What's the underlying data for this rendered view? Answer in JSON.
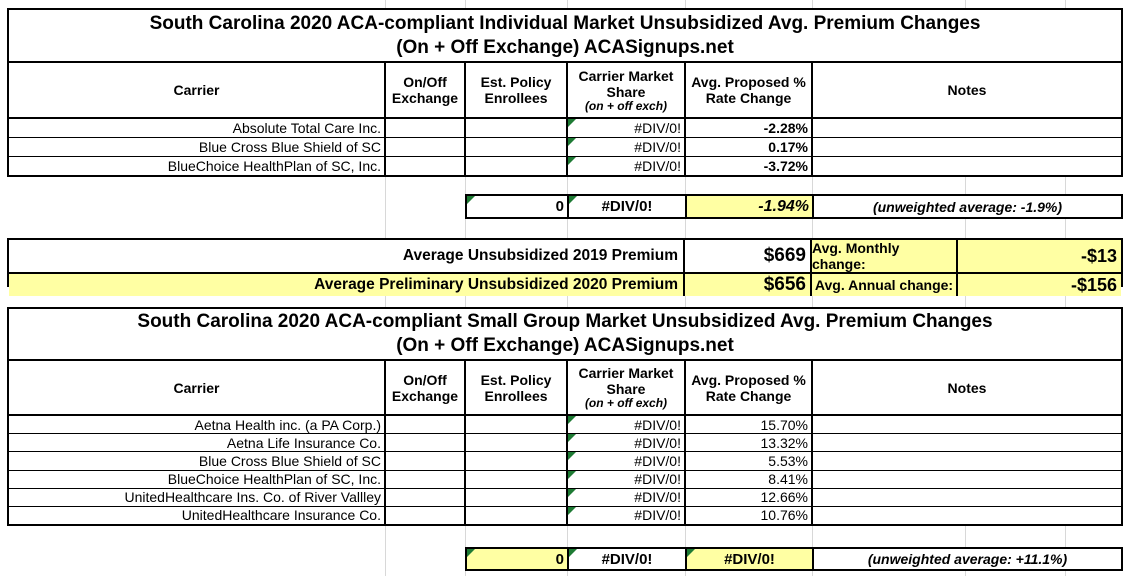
{
  "colors": {
    "highlight_yellow": "#FFFFA3",
    "error_triangle_green": "#1E7B34",
    "gridline_gray": "#D8D8D8"
  },
  "column_headers": {
    "carrier": "Carrier",
    "exchange": "On/Off Exchange",
    "enrollees": "Est. Policy Enrollees",
    "market_share": "Carrier Market Share",
    "market_share_sub": "(on + off exch)",
    "rate_change": "Avg. Proposed % Rate Change",
    "notes": "Notes"
  },
  "table1": {
    "title_line1": "South Carolina 2020 ACA-compliant Individual Market Unsubsidized Avg. Premium Changes",
    "title_line2": "(On + Off Exchange) ACASignups.net",
    "rows": [
      {
        "carrier": "Absolute Total Care Inc.",
        "exchange": "",
        "enrollees": "",
        "market_share": "#DIV/0!",
        "rate_change": "-2.28%",
        "notes": ""
      },
      {
        "carrier": "Blue Cross Blue Shield of SC",
        "exchange": "",
        "enrollees": "",
        "market_share": "#DIV/0!",
        "rate_change": "0.17%",
        "notes": ""
      },
      {
        "carrier": "BlueChoice HealthPlan of SC, Inc.",
        "exchange": "",
        "enrollees": "",
        "market_share": "#DIV/0!",
        "rate_change": "-3.72%",
        "notes": ""
      }
    ],
    "totals": {
      "enrollees": "0",
      "market_share": "#DIV/0!",
      "rate_change": "-1.94%",
      "note": "(unweighted average: -1.9%)"
    }
  },
  "summary": {
    "row1": {
      "label": "Average Unsubsidized 2019 Premium",
      "value": "$669",
      "change_label": "Avg. Monthly change:",
      "change_value": "-$13"
    },
    "row2": {
      "label": "Average Preliminary Unsubsidized 2020 Premium",
      "value": "$656",
      "change_label": "Avg. Annual change:",
      "change_value": "-$156"
    }
  },
  "table2": {
    "title_line1": "South Carolina 2020 ACA-compliant Small Group Market Unsubsidized Avg. Premium Changes",
    "title_line2": "(On + Off Exchange) ACASignups.net",
    "rows": [
      {
        "carrier": "Aetna Health inc. (a PA Corp.)",
        "exchange": "",
        "enrollees": "",
        "market_share": "#DIV/0!",
        "rate_change": "15.70%",
        "notes": ""
      },
      {
        "carrier": "Aetna Life Insurance Co.",
        "exchange": "",
        "enrollees": "",
        "market_share": "#DIV/0!",
        "rate_change": "13.32%",
        "notes": ""
      },
      {
        "carrier": "Blue Cross Blue Shield of SC",
        "exchange": "",
        "enrollees": "",
        "market_share": "#DIV/0!",
        "rate_change": "5.53%",
        "notes": ""
      },
      {
        "carrier": "BlueChoice HealthPlan of SC, Inc.",
        "exchange": "",
        "enrollees": "",
        "market_share": "#DIV/0!",
        "rate_change": "8.41%",
        "notes": ""
      },
      {
        "carrier": "UnitedHealthcare Ins. Co. of River Vallley",
        "exchange": "",
        "enrollees": "",
        "market_share": "#DIV/0!",
        "rate_change": "12.66%",
        "notes": ""
      },
      {
        "carrier": "UnitedHealthcare Insurance Co.",
        "exchange": "",
        "enrollees": "",
        "market_share": "#DIV/0!",
        "rate_change": "10.76%",
        "notes": ""
      }
    ],
    "totals": {
      "enrollees": "0",
      "market_share": "#DIV/0!",
      "rate_change": "#DIV/0!",
      "note": "(unweighted average: +11.1%)"
    }
  }
}
